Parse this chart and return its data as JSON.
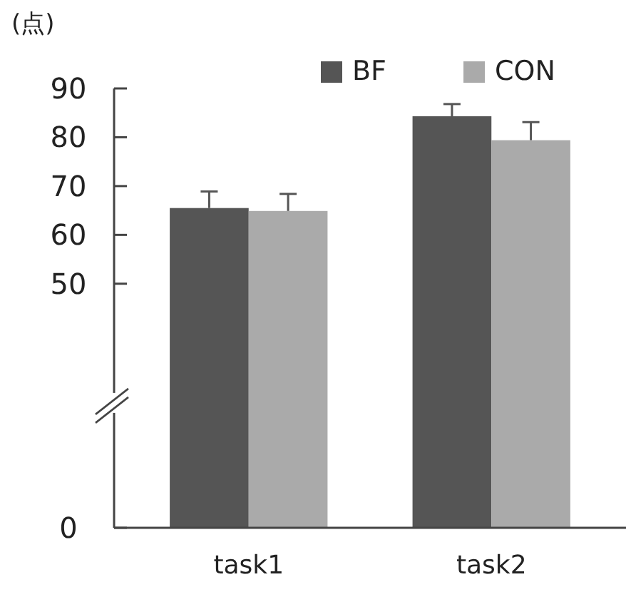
{
  "chart_data": {
    "type": "bar",
    "ylabel": "(点)",
    "categories": [
      "task1",
      "task2"
    ],
    "series": [
      {
        "name": "BF",
        "color": "#555555",
        "values": [
          65.5,
          84.3
        ],
        "errors": [
          [
            65.5,
            68.9
          ],
          [
            84.3,
            86.8
          ]
        ]
      },
      {
        "name": "CON",
        "color": "#aaaaaa",
        "values": [
          64.9,
          79.4
        ],
        "errors": [
          [
            64.9,
            68.4
          ],
          [
            79.4,
            83.1
          ]
        ]
      }
    ],
    "ylim": [
      0,
      90
    ],
    "yticks": [
      0,
      50,
      60,
      70,
      80,
      90
    ],
    "legend": "top right",
    "grid": false
  }
}
